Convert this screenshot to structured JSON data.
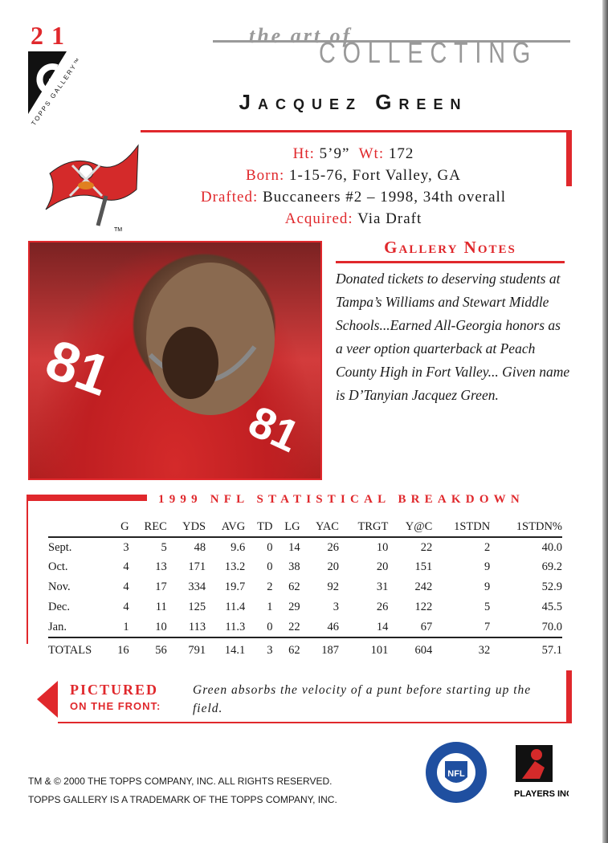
{
  "card_number": "21",
  "brand": {
    "logo_text": "TOPPS GALLERY",
    "line1": "the art of",
    "line2": "COLLECTING"
  },
  "player": {
    "name": "Jacquez Green"
  },
  "bio": {
    "ht_label": "Ht:",
    "ht": "5’9”",
    "wt_label": "Wt:",
    "wt": "172",
    "born_label": "Born:",
    "born": "1-15-76, Fort Valley, GA",
    "drafted_label": "Drafted:",
    "drafted": "Buccaneers #2 – 1998, 34th overall",
    "acquired_label": "Acquired:",
    "acquired": "Via Draft"
  },
  "team_logo": {
    "icon": "buccaneers-flag",
    "tm": "TM"
  },
  "gallery_notes": {
    "title": "Gallery Notes",
    "text": "Donated tickets to deserving students at Tampa’s Williams and Stewart Middle Schools...Earned All-Georgia honors as a veer option quarterback at Peach County High in Fort Valley... Given name is D’Tanyian Jacquez Green."
  },
  "stats": {
    "title": "1999 NFL STATISTICAL BREAKDOWN",
    "columns": [
      "",
      "G",
      "REC",
      "YDS",
      "AVG",
      "TD",
      "LG",
      "YAC",
      "TRGT",
      "Y@C",
      "1STDN",
      "1STDN%"
    ],
    "rows": [
      [
        "Sept.",
        "3",
        "5",
        "48",
        "9.6",
        "0",
        "14",
        "26",
        "10",
        "22",
        "2",
        "40.0"
      ],
      [
        "Oct.",
        "4",
        "13",
        "171",
        "13.2",
        "0",
        "38",
        "20",
        "20",
        "151",
        "9",
        "69.2"
      ],
      [
        "Nov.",
        "4",
        "17",
        "334",
        "19.7",
        "2",
        "62",
        "92",
        "31",
        "242",
        "9",
        "52.9"
      ],
      [
        "Dec.",
        "4",
        "11",
        "125",
        "11.4",
        "1",
        "29",
        "3",
        "26",
        "122",
        "5",
        "45.5"
      ],
      [
        "Jan.",
        "1",
        "10",
        "113",
        "11.3",
        "0",
        "22",
        "46",
        "14",
        "67",
        "7",
        "70.0"
      ]
    ],
    "totals": [
      "TOTALS",
      "16",
      "56",
      "791",
      "14.1",
      "3",
      "62",
      "187",
      "101",
      "604",
      "32",
      "57.1"
    ]
  },
  "pictured": {
    "label1": "PICTURED",
    "label2": "ON THE FRONT:",
    "text": "Green absorbs the velocity of a punt before starting up the field."
  },
  "legal": {
    "line1": "TM & © 2000 THE TOPPS COMPANY, INC. ALL RIGHTS RESERVED.",
    "line2": "TOPPS GALLERY IS A TRADEMARK OF THE TOPPS COMPANY, INC."
  },
  "logos": {
    "nfl": "NFL",
    "nfl_ring": "OFFICIALLY LICENSED PRODUCT",
    "players": "PLAYERS INC"
  },
  "colors": {
    "accent": "#e0282c",
    "gray": "#9a9a9a"
  }
}
